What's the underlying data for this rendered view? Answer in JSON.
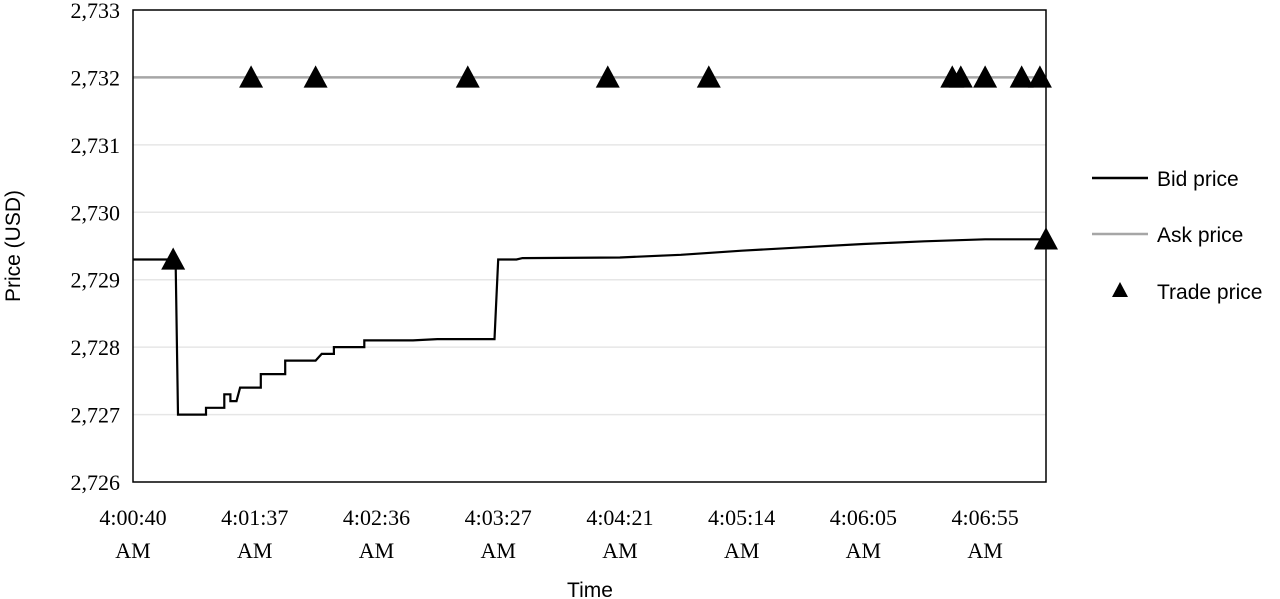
{
  "chart_data": {
    "type": "line",
    "title": "",
    "xlabel": "Time",
    "ylabel": "Price (USD)",
    "ylim": [
      2726,
      2733
    ],
    "y_ticks": [
      2726,
      2727,
      2728,
      2729,
      2730,
      2731,
      2732,
      2733
    ],
    "y_tick_labels": [
      "2,726",
      "2,727",
      "2,728",
      "2,729",
      "2,730",
      "2,731",
      "2,732",
      "2,733"
    ],
    "x_ticks": [
      "4:00:40 AM",
      "4:01:37 AM",
      "4:02:36 AM",
      "4:03:27 AM",
      "4:04:21 AM",
      "4:05:14 AM",
      "4:06:05 AM",
      "4:06:55 AM"
    ],
    "x_tick_lines": [
      [
        "4:00:40",
        "AM"
      ],
      [
        "4:01:37",
        "AM"
      ],
      [
        "4:02:36",
        "AM"
      ],
      [
        "4:03:27",
        "AM"
      ],
      [
        "4:04:21",
        "AM"
      ],
      [
        "4:05:14",
        "AM"
      ],
      [
        "4:06:05",
        "AM"
      ],
      [
        "4:06:55",
        "AM"
      ]
    ],
    "xlim": [
      0,
      7.5
    ],
    "grid": true,
    "legend_position": "right",
    "series": [
      {
        "name": "Bid price",
        "color": "#000000",
        "style": "step-line",
        "points": [
          [
            0,
            2729.3
          ],
          [
            0.35,
            2729.3
          ],
          [
            0.37,
            2727.0
          ],
          [
            0.6,
            2727.0
          ],
          [
            0.6,
            2727.1
          ],
          [
            0.75,
            2727.1
          ],
          [
            0.75,
            2727.3
          ],
          [
            0.8,
            2727.3
          ],
          [
            0.8,
            2727.2
          ],
          [
            0.85,
            2727.2
          ],
          [
            0.88,
            2727.4
          ],
          [
            1.05,
            2727.4
          ],
          [
            1.05,
            2727.6
          ],
          [
            1.25,
            2727.6
          ],
          [
            1.25,
            2727.8
          ],
          [
            1.5,
            2727.8
          ],
          [
            1.55,
            2727.9
          ],
          [
            1.65,
            2727.9
          ],
          [
            1.65,
            2728.0
          ],
          [
            1.9,
            2728.0
          ],
          [
            1.9,
            2728.1
          ],
          [
            2.3,
            2728.1
          ],
          [
            2.5,
            2728.12
          ],
          [
            2.97,
            2728.12
          ],
          [
            3.0,
            2729.3
          ],
          [
            3.15,
            2729.3
          ],
          [
            3.2,
            2729.32
          ],
          [
            4.0,
            2729.33
          ],
          [
            4.5,
            2729.37
          ],
          [
            5.0,
            2729.43
          ],
          [
            5.5,
            2729.48
          ],
          [
            6.0,
            2729.53
          ],
          [
            6.5,
            2729.57
          ],
          [
            7.0,
            2729.6
          ],
          [
            7.5,
            2729.6
          ]
        ]
      },
      {
        "name": "Ask price",
        "color": "#a6a6a6",
        "style": "line",
        "points": [
          [
            0,
            2732.0
          ],
          [
            7.5,
            2732.0
          ]
        ]
      },
      {
        "name": "Trade price",
        "color": "#000000",
        "style": "triangle-marker",
        "points": [
          [
            0.33,
            2729.3
          ],
          [
            0.97,
            2732.0
          ],
          [
            1.5,
            2732.0
          ],
          [
            2.75,
            2732.0
          ],
          [
            3.9,
            2732.0
          ],
          [
            4.73,
            2732.0
          ],
          [
            6.73,
            2732.0
          ],
          [
            6.8,
            2732.0
          ],
          [
            7.0,
            2732.0
          ],
          [
            7.3,
            2732.0
          ],
          [
            7.45,
            2732.0
          ],
          [
            7.5,
            2729.6
          ]
        ]
      }
    ]
  }
}
